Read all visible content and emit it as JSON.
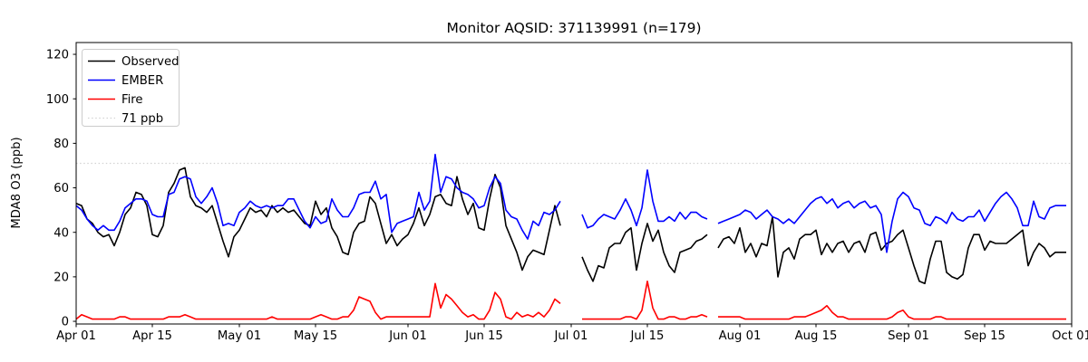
{
  "chart_data": {
    "type": "line",
    "title": "Monitor AQSID: 371139991 (n=179)",
    "monitor_aqsid": "371139991",
    "n_observations": 179,
    "ylabel": "MDA8 O3 (ppb)",
    "xlabel": "",
    "ylim": [
      -1.2,
      125.3
    ],
    "yticks": [
      0,
      20,
      40,
      60,
      80,
      100,
      120
    ],
    "n_days": 183,
    "x_range": [
      "Apr 01",
      "Oct 01"
    ],
    "xtick_labels": [
      "Apr 01",
      "Apr 15",
      "May 01",
      "May 15",
      "Jun 01",
      "Jun 15",
      "Jul 01",
      "Jul 15",
      "Aug 01",
      "Aug 15",
      "Sep 01",
      "Sep 15",
      "Oct 01"
    ],
    "xtick_days": [
      0,
      14,
      30,
      44,
      61,
      75,
      91,
      105,
      122,
      136,
      153,
      167,
      183
    ],
    "grid": false,
    "threshold_line": {
      "label": "71 ppb",
      "value": 71,
      "color": "#d3d3d3",
      "style": "dotted"
    },
    "legend": {
      "position": "upper left",
      "items": [
        {
          "label": "Observed",
          "color": "#000000",
          "dash": ""
        },
        {
          "label": "EMBER",
          "color": "#0000ff",
          "dash": ""
        },
        {
          "label": "Fire",
          "color": "#ff0000",
          "dash": ""
        },
        {
          "label": "71 ppb",
          "color": "#d3d3d3",
          "dash": "1.5 2.6"
        }
      ]
    },
    "series": [
      {
        "name": "Observed",
        "color": "#000000",
        "values": [
          53,
          52,
          46,
          44,
          40,
          38,
          39,
          34,
          40,
          48,
          51,
          58,
          57,
          52,
          39,
          38,
          43,
          58,
          62,
          68,
          69,
          56,
          52,
          51,
          49,
          52,
          44,
          36,
          29,
          38,
          41,
          46,
          51,
          49,
          50,
          47,
          52,
          49,
          51,
          49,
          50,
          47,
          44,
          43,
          54,
          48,
          51,
          42,
          38,
          31,
          30,
          40,
          44,
          45,
          56,
          53,
          44,
          35,
          39,
          34,
          37,
          39,
          44,
          51,
          43,
          48,
          56,
          57,
          53,
          52,
          65,
          55,
          48,
          53,
          42,
          41,
          55,
          66,
          60,
          43,
          37,
          31,
          23,
          29,
          32,
          31,
          30,
          41,
          52,
          43,
          null,
          null,
          null,
          29,
          23,
          18,
          25,
          24,
          33,
          35,
          35,
          40,
          42,
          23,
          35,
          44,
          36,
          41,
          31,
          25,
          22,
          31,
          32,
          33,
          36,
          37,
          39,
          null,
          33,
          37,
          38,
          35,
          42,
          31,
          35,
          29,
          35,
          34,
          47,
          20,
          31,
          33,
          28,
          37,
          39,
          39,
          41,
          30,
          35,
          31,
          35,
          36,
          31,
          35,
          36,
          31,
          39,
          40,
          32,
          35,
          36,
          39,
          41,
          33,
          25,
          18,
          17,
          28,
          36,
          36,
          22,
          20,
          19,
          21,
          33,
          39,
          39,
          32,
          36,
          35,
          35,
          35,
          37,
          39,
          41,
          25,
          31,
          35,
          33,
          29,
          31,
          31,
          31
        ]
      },
      {
        "name": "EMBER",
        "color": "#0000ff",
        "values": [
          52,
          50,
          46,
          43,
          41,
          43,
          41,
          41,
          45,
          51,
          53,
          55,
          55,
          54,
          48,
          47,
          47,
          57,
          58,
          64,
          65,
          64,
          56,
          53,
          56,
          60,
          53,
          43,
          44,
          43,
          49,
          51,
          54,
          52,
          51,
          52,
          51,
          52,
          52,
          55,
          55,
          50,
          45,
          42,
          47,
          44,
          45,
          55,
          50,
          47,
          47,
          51,
          57,
          58,
          58,
          63,
          55,
          57,
          40,
          44,
          45,
          46,
          47,
          58,
          50,
          54,
          75,
          58,
          65,
          64,
          60,
          58,
          57,
          55,
          51,
          52,
          60,
          65,
          62,
          50,
          47,
          46,
          41,
          37,
          45,
          43,
          49,
          48,
          50,
          54,
          null,
          null,
          null,
          48,
          42,
          43,
          46,
          48,
          47,
          46,
          50,
          55,
          50,
          43,
          51,
          68,
          54,
          45,
          45,
          47,
          45,
          49,
          46,
          49,
          49,
          47,
          46,
          null,
          44,
          45,
          46,
          47,
          48,
          50,
          49,
          46,
          48,
          50,
          47,
          46,
          44,
          46,
          44,
          47,
          50,
          53,
          55,
          56,
          53,
          55,
          51,
          53,
          54,
          51,
          53,
          54,
          51,
          52,
          48,
          31,
          45,
          55,
          58,
          56,
          51,
          50,
          44,
          43,
          47,
          46,
          44,
          49,
          46,
          45,
          47,
          47,
          50,
          45,
          49,
          53,
          56,
          58,
          55,
          51,
          43,
          43,
          54,
          47,
          46,
          51,
          52,
          52,
          52
        ]
      },
      {
        "name": "Fire",
        "color": "#ff0000",
        "values": [
          1,
          3,
          2,
          1,
          1,
          1,
          1,
          1,
          2,
          2,
          1,
          1,
          1,
          1,
          1,
          1,
          1,
          2,
          2,
          2,
          3,
          2,
          1,
          1,
          1,
          1,
          1,
          1,
          1,
          1,
          1,
          1,
          1,
          1,
          1,
          1,
          2,
          1,
          1,
          1,
          1,
          1,
          1,
          1,
          2,
          3,
          2,
          1,
          1,
          2,
          2,
          5,
          11,
          10,
          9,
          4,
          1,
          2,
          2,
          2,
          2,
          2,
          2,
          2,
          2,
          2,
          17,
          6,
          12,
          10,
          7,
          4,
          2,
          3,
          1,
          1,
          5,
          13,
          10,
          2,
          1,
          4,
          2,
          3,
          2,
          4,
          2,
          5,
          10,
          8,
          null,
          null,
          null,
          1,
          1,
          1,
          1,
          1,
          1,
          1,
          1,
          2,
          2,
          1,
          5,
          18,
          6,
          1,
          1,
          2,
          2,
          1,
          1,
          2,
          2,
          3,
          2,
          null,
          2,
          2,
          2,
          2,
          2,
          1,
          1,
          1,
          1,
          1,
          1,
          1,
          1,
          1,
          2,
          2,
          2,
          3,
          4,
          5,
          7,
          4,
          2,
          2,
          1,
          1,
          1,
          1,
          1,
          1,
          1,
          1,
          2,
          4,
          5,
          2,
          1,
          1,
          1,
          1,
          2,
          2,
          1,
          1,
          1,
          1,
          1,
          1,
          1,
          1,
          1,
          1,
          1,
          1,
          1,
          1,
          1,
          1,
          1,
          1,
          1,
          1,
          1,
          1,
          1
        ]
      }
    ]
  }
}
